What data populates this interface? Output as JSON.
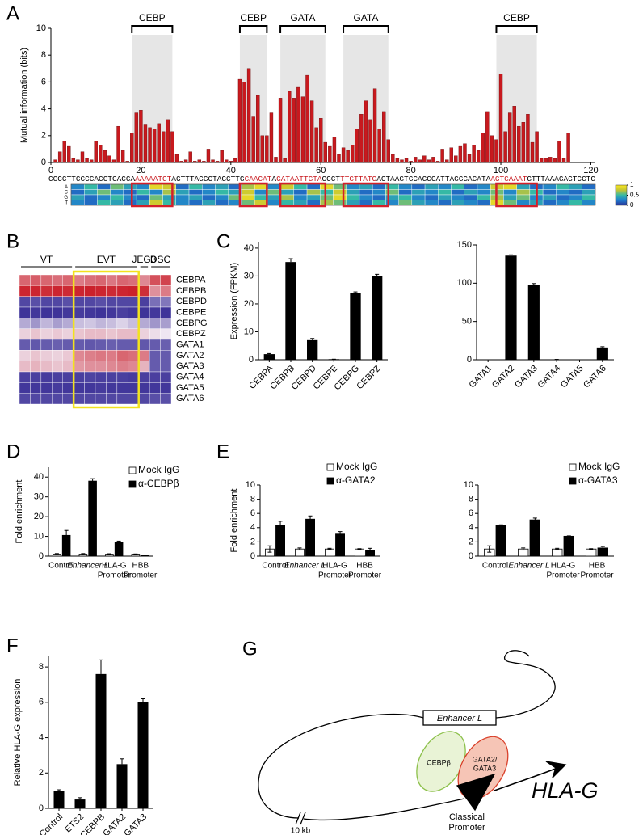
{
  "chart_data": [
    {
      "panel": "A",
      "type": "bar",
      "ylabel": "Mutual information (bits)",
      "color": "#c8191e",
      "x": [
        1,
        2,
        3,
        4,
        5,
        6,
        7,
        8,
        9,
        10,
        11,
        12,
        13,
        14,
        15,
        16,
        17,
        18,
        19,
        20,
        21,
        22,
        23,
        24,
        25,
        26,
        27,
        28,
        29,
        30,
        31,
        32,
        33,
        34,
        35,
        36,
        37,
        38,
        39,
        40,
        41,
        42,
        43,
        44,
        45,
        46,
        47,
        48,
        49,
        50,
        51,
        52,
        53,
        54,
        55,
        56,
        57,
        58,
        59,
        60,
        61,
        62,
        63,
        64,
        65,
        66,
        67,
        68,
        69,
        70,
        71,
        72,
        73,
        74,
        75,
        76,
        77,
        78,
        79,
        80,
        81,
        82,
        83,
        84,
        85,
        86,
        87,
        88,
        89,
        90,
        91,
        92,
        93,
        94,
        95,
        96,
        97,
        98,
        99,
        100,
        101,
        102,
        103,
        104,
        105,
        106,
        107,
        108,
        109,
        110,
        111,
        112,
        113,
        114,
        115
      ],
      "values": [
        0.2,
        0.8,
        1.6,
        1.2,
        0.3,
        0.2,
        0.8,
        0.3,
        0.2,
        1.6,
        1.3,
        0.9,
        0.5,
        0.2,
        2.7,
        0.9,
        0.1,
        2.2,
        3.7,
        3.9,
        2.8,
        2.6,
        2.5,
        2.9,
        2.3,
        3.2,
        2.3,
        0.6,
        0.1,
        0.2,
        0.8,
        0.1,
        0.2,
        0.1,
        1.0,
        0.2,
        0.1,
        0.9,
        0.2,
        0.1,
        0.3,
        6.2,
        6.0,
        7.0,
        3.4,
        5.0,
        2.0,
        2.0,
        3.7,
        0.4,
        4.8,
        0.3,
        5.3,
        4.8,
        5.6,
        4.9,
        6.5,
        4.6,
        2.6,
        3.3,
        1.5,
        1.2,
        1.9,
        0.6,
        1.1,
        0.9,
        1.3,
        2.5,
        3.6,
        4.6,
        3.2,
        5.5,
        2.5,
        3.8,
        1.7,
        0.6,
        0.3,
        0.2,
        0.3,
        0.1,
        0.4,
        0.2,
        0.5,
        0.2,
        0.4,
        0.1,
        1.0,
        0.2,
        1.1,
        0.5,
        1.2,
        1.4,
        0.6,
        1.3,
        0.9,
        2.2,
        3.8,
        2.0,
        1.7,
        6.6,
        2.3,
        3.7,
        4.2,
        2.7,
        3.0,
        3.6,
        1.5,
        2.3,
        0.3,
        0.3,
        0.4,
        0.3,
        1.6,
        0.3,
        2.2
      ],
      "xlim": [
        0,
        121
      ],
      "xticks": [
        0,
        20,
        40,
        60,
        80,
        100,
        120
      ],
      "ylim": [
        0,
        10
      ],
      "yticks": [
        0,
        2,
        4,
        6,
        8,
        10
      ],
      "motifs": [
        {
          "label": "CEBP",
          "start": 18,
          "end": 27
        },
        {
          "label": "CEBP",
          "start": 42,
          "end": 48
        },
        {
          "label": "GATA",
          "start": 51,
          "end": 61
        },
        {
          "label": "GATA",
          "start": 65,
          "end": 75
        },
        {
          "label": "CEBP",
          "start": 99,
          "end": 108
        }
      ],
      "motif_shade": "#e6e6e6",
      "motif_box_color": "#d3202a",
      "sequence": [
        {
          "text": "CCCCTTCCCCACCTCACCA",
          "highlight": false
        },
        {
          "text": "AAAAATGT",
          "highlight": true
        },
        {
          "text": "AGTTTAGGCTAGCTTG",
          "highlight": false
        },
        {
          "text": "CAACAT",
          "highlight": true
        },
        {
          "text": "A",
          "highlight": false
        },
        {
          "text": "GATAATTGTA",
          "highlight": true
        },
        {
          "text": "CCCT",
          "highlight": false
        },
        {
          "text": "TTCTTATC",
          "highlight": true
        },
        {
          "text": "ACTAAGTGCAGCCATTAGGGACATA",
          "highlight": false
        },
        {
          "text": "AGTCAAAT",
          "highlight": true
        },
        {
          "text": "GTTTAAAGAGTCCTG",
          "highlight": false
        }
      ],
      "sequence_highlight_color": "#c8191e",
      "matrix_rows": [
        "A",
        "C",
        "G",
        "T"
      ],
      "matrix": [
        [
          0.3,
          0.5,
          0.2,
          0.6,
          0.4,
          0.3,
          0.9,
          0.8,
          0.2,
          0.5,
          0.3,
          0.4,
          0.2,
          0.7,
          0.9,
          0.3,
          0.8,
          0.5,
          0.2,
          0.9,
          0.6,
          0.3,
          0.4,
          0.2,
          0.5,
          0.3,
          0.2,
          0.4,
          0.3,
          0.5,
          0.2,
          0.3,
          0.8,
          0.9,
          0.4,
          0.2,
          0.3,
          0.5,
          0.4,
          0.2
        ],
        [
          0.2,
          0.4,
          0.6,
          0.3,
          0.2,
          0.5,
          0.3,
          0.7,
          0.4,
          0.2,
          0.3,
          0.5,
          0.4,
          0.8,
          0.3,
          0.6,
          0.4,
          0.2,
          0.7,
          0.5,
          0.8,
          0.4,
          0.2,
          0.3,
          0.6,
          0.2,
          0.4,
          0.3,
          0.5,
          0.2,
          0.4,
          0.3,
          0.6,
          0.3,
          0.7,
          0.5,
          0.2,
          0.3,
          0.2,
          0.4
        ],
        [
          0.4,
          0.2,
          0.3,
          0.5,
          0.3,
          0.2,
          0.6,
          0.4,
          0.3,
          0.4,
          0.2,
          0.3,
          0.6,
          0.9,
          0.5,
          0.4,
          0.7,
          0.3,
          0.4,
          0.6,
          0.9,
          0.5,
          0.3,
          0.2,
          0.4,
          0.5,
          0.3,
          0.2,
          0.4,
          0.3,
          0.2,
          0.5,
          0.7,
          0.4,
          0.6,
          0.3,
          0.4,
          0.2,
          0.3,
          0.5
        ],
        [
          0.3,
          0.2,
          0.5,
          0.4,
          0.2,
          0.4,
          0.8,
          0.5,
          0.3,
          0.2,
          0.4,
          0.2,
          0.3,
          0.6,
          0.8,
          0.3,
          0.5,
          0.4,
          0.2,
          0.7,
          0.6,
          0.4,
          0.2,
          0.5,
          0.3,
          0.6,
          0.4,
          0.3,
          0.2,
          0.4,
          0.3,
          0.2,
          0.9,
          0.6,
          0.3,
          0.4,
          0.2,
          0.3,
          0.5,
          0.3
        ]
      ],
      "colormap": [
        "#2c2f8f",
        "#1e7bd0",
        "#35b9a5",
        "#c3c434",
        "#f8e622"
      ],
      "colorbar_lim": [
        0,
        1
      ],
      "colorbar_ticks": [
        0,
        0.5,
        1
      ]
    },
    {
      "panel": "B",
      "type": "heatmap",
      "column_groups": [
        "VT",
        "VT",
        "VT",
        "VT",
        "VT",
        "EVT",
        "EVT",
        "EVT",
        "EVT",
        "EVT",
        "EVT",
        "JEG3",
        "DSC",
        "DSC"
      ],
      "highlight": "EVT",
      "highlight_color": "#f2e21e",
      "rows": [
        "CEBPA",
        "CEBPB",
        "CEBPD",
        "CEBPE",
        "CEBPG",
        "CEBPZ",
        "GATA1",
        "GATA2",
        "GATA3",
        "GATA4",
        "GATA5",
        "GATA6"
      ],
      "matrix": [
        [
          0.8,
          0.82,
          0.8,
          0.78,
          0.8,
          0.75,
          0.78,
          0.8,
          0.76,
          0.8,
          0.78,
          0.72,
          0.85,
          0.88
        ],
        [
          0.95,
          0.95,
          0.93,
          0.95,
          0.94,
          0.95,
          0.96,
          0.95,
          0.94,
          0.95,
          0.96,
          0.93,
          0.7,
          0.75
        ],
        [
          0.1,
          0.12,
          0.1,
          0.1,
          0.12,
          0.1,
          0.1,
          0.12,
          0.1,
          0.1,
          0.1,
          0.08,
          0.2,
          0.22
        ],
        [
          0.05,
          0.06,
          0.05,
          0.05,
          0.06,
          0.07,
          0.06,
          0.05,
          0.06,
          0.08,
          0.06,
          0.05,
          0.06,
          0.05
        ],
        [
          0.35,
          0.3,
          0.38,
          0.32,
          0.35,
          0.4,
          0.42,
          0.38,
          0.4,
          0.45,
          0.4,
          0.35,
          0.3,
          0.32
        ],
        [
          0.55,
          0.58,
          0.55,
          0.57,
          0.55,
          0.58,
          0.6,
          0.6,
          0.58,
          0.6,
          0.6,
          0.55,
          0.52,
          0.5
        ],
        [
          0.15,
          0.14,
          0.15,
          0.16,
          0.15,
          0.15,
          0.14,
          0.15,
          0.16,
          0.15,
          0.15,
          0.14,
          0.15,
          0.16
        ],
        [
          0.55,
          0.58,
          0.56,
          0.55,
          0.57,
          0.72,
          0.74,
          0.76,
          0.75,
          0.8,
          0.78,
          0.75,
          0.15,
          0.15
        ],
        [
          0.6,
          0.62,
          0.6,
          0.58,
          0.6,
          0.68,
          0.7,
          0.7,
          0.72,
          0.74,
          0.72,
          0.62,
          0.15,
          0.15
        ],
        [
          0.08,
          0.08,
          0.07,
          0.08,
          0.08,
          0.08,
          0.09,
          0.08,
          0.08,
          0.08,
          0.07,
          0.08,
          0.08,
          0.08
        ],
        [
          0.06,
          0.06,
          0.06,
          0.07,
          0.06,
          0.06,
          0.06,
          0.07,
          0.06,
          0.06,
          0.06,
          0.06,
          0.06,
          0.06
        ],
        [
          0.1,
          0.1,
          0.1,
          0.1,
          0.1,
          0.1,
          0.1,
          0.1,
          0.1,
          0.1,
          0.1,
          0.1,
          0.12,
          0.12
        ]
      ],
      "colormap": [
        "#2a1f8f",
        "#efe6f2",
        "#c8101a"
      ]
    },
    {
      "panel": "C",
      "type": "bar",
      "ylabel": "Expression (FPKM)",
      "color": "#000000",
      "categories": [
        "CEBPA",
        "CEBPB",
        "CEBPD",
        "CEBPE",
        "CEBPG",
        "CEBPZ"
      ],
      "values": [
        2,
        35,
        7,
        0.2,
        24,
        30
      ],
      "errors": [
        0.2,
        1.2,
        0.6,
        0,
        0.3,
        0.6
      ],
      "ylim": [
        0,
        42
      ],
      "yticks": [
        0,
        10,
        20,
        30,
        40
      ]
    },
    {
      "type": "bar",
      "color": "#000000",
      "categories": [
        "GATA1",
        "GATA2",
        "GATA3",
        "GATA4",
        "GATA5",
        "GATA6"
      ],
      "values": [
        0,
        136,
        98,
        0.5,
        0,
        16
      ],
      "errors": [
        0,
        1,
        1.5,
        0,
        0,
        1
      ],
      "ylim": [
        0,
        150
      ],
      "yticks": [
        0,
        50,
        100,
        150
      ]
    },
    {
      "panel": "D",
      "type": "grouped_bar",
      "ylabel": "Fold enrichment",
      "categories": [
        [
          "Control"
        ],
        [
          "Enhancer L"
        ],
        [
          "HLA-G",
          "Promoter"
        ],
        [
          "HBB",
          "Promoter"
        ]
      ],
      "category_colors": [
        "#000000",
        "#b3202a",
        "#000000",
        "#000000"
      ],
      "category_italic": [
        false,
        true,
        false,
        false
      ],
      "series": [
        {
          "name": "Mock IgG",
          "color": "#ffffff",
          "values": [
            1,
            1,
            1,
            1
          ],
          "errors": [
            0.3,
            0.3,
            0.2,
            0.1
          ]
        },
        {
          "name": "α-CEBPβ",
          "color": "#000000",
          "values": [
            10.5,
            38,
            7,
            0.4
          ],
          "errors": [
            2.5,
            1.2,
            0.6,
            0.2
          ]
        }
      ],
      "ylim": [
        0,
        45
      ],
      "yticks": [
        0,
        10,
        20,
        30,
        40
      ],
      "legend": "top-right"
    },
    {
      "panel": "E",
      "type": "grouped_bar",
      "ylabel": "Fold enrichment",
      "categories": [
        [
          "Control"
        ],
        [
          "Enhancer L"
        ],
        [
          "HLA-G",
          "Promoter"
        ],
        [
          "HBB",
          "Promoter"
        ]
      ],
      "category_colors": [
        "#000000",
        "#b3202a",
        "#000000",
        "#000000"
      ],
      "category_italic": [
        false,
        true,
        false,
        false
      ],
      "series": [
        {
          "name": "Mock IgG",
          "color": "#ffffff",
          "values": [
            1,
            1,
            1,
            1
          ],
          "errors": [
            0.45,
            0.15,
            0.1,
            0.05
          ]
        },
        {
          "name": "α-GATA2",
          "color": "#000000",
          "values": [
            4.3,
            5.2,
            3.1,
            0.8
          ],
          "errors": [
            0.6,
            0.45,
            0.35,
            0.3
          ]
        }
      ],
      "ylim": [
        0,
        10
      ],
      "yticks": [
        0,
        2,
        4,
        6,
        8,
        10
      ],
      "legend": "top-right"
    },
    {
      "type": "grouped_bar",
      "categories": [
        [
          "Control"
        ],
        [
          "Enhancer L"
        ],
        [
          "HLA-G",
          "Promoter"
        ],
        [
          "HBB",
          "Promoter"
        ]
      ],
      "category_colors": [
        "#000000",
        "#b3202a",
        "#000000",
        "#000000"
      ],
      "category_italic": [
        false,
        true,
        false,
        false
      ],
      "series": [
        {
          "name": "Mock IgG",
          "color": "#ffffff",
          "values": [
            1,
            1,
            1,
            1
          ],
          "errors": [
            0.45,
            0.15,
            0.1,
            0.05
          ]
        },
        {
          "name": "α-GATA3",
          "color": "#000000",
          "values": [
            4.3,
            5.1,
            2.8,
            1.15
          ],
          "errors": [
            0.1,
            0.25,
            0.05,
            0.2
          ]
        }
      ],
      "ylim": [
        0,
        10
      ],
      "yticks": [
        0,
        2,
        4,
        6,
        8,
        10
      ],
      "legend": "top-right"
    },
    {
      "panel": "F",
      "type": "bar",
      "ylabel": "Relative HLA-G expression",
      "color": "#000000",
      "categories": [
        "Control",
        "ETS2",
        "CEBPB",
        "GATA2",
        "GATA3"
      ],
      "values": [
        1,
        0.5,
        7.6,
        2.5,
        6.0
      ],
      "errors": [
        0.05,
        0.1,
        0.8,
        0.3,
        0.2
      ],
      "ylim": [
        0,
        8.6
      ],
      "yticks": [
        0,
        2,
        4,
        6,
        8
      ]
    }
  ],
  "diagram": {
    "panel": "G",
    "enhancer": "Enhancer L",
    "factor1": "CEBPβ",
    "factor2": [
      "GATA2/",
      "GATA3"
    ],
    "promoter": [
      "Classical",
      "Promoter"
    ],
    "gene": "HLA-G",
    "scale": "10 kb"
  }
}
